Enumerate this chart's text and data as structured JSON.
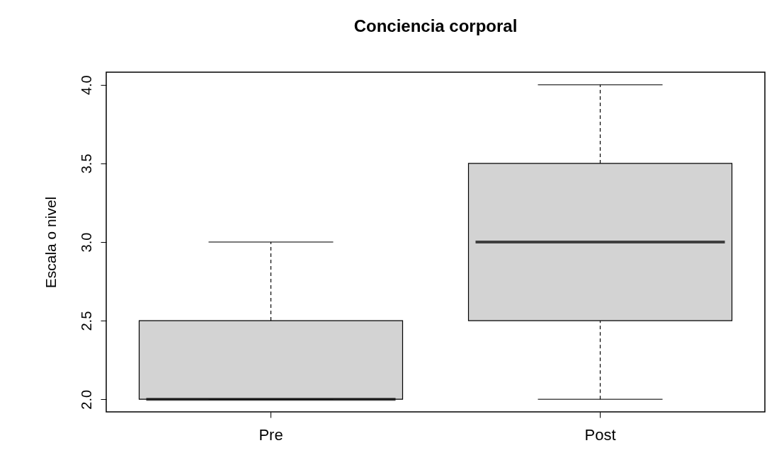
{
  "chart_data": {
    "type": "box",
    "title": "Conciencia corporal",
    "ylabel": "Escala o nivel",
    "categories": [
      "Pre",
      "Post"
    ],
    "boxes": [
      {
        "low": 2,
        "q1": 2,
        "median": 2,
        "q3": 2.5,
        "high": 3
      },
      {
        "low": 2,
        "q1": 2.5,
        "median": 3,
        "q3": 3.5,
        "high": 4
      }
    ],
    "color": "#d3d3d3",
    "ylim": [
      1.92,
      4.08
    ],
    "yticks": [
      {
        "value": 2,
        "label": "2.0"
      },
      {
        "value": 2.5,
        "label": "2.5"
      },
      {
        "value": 3,
        "label": "3.0"
      },
      {
        "value": 3.5,
        "label": "3.5"
      },
      {
        "value": 4,
        "label": "4.0"
      }
    ],
    "grid": false,
    "line_style": "dashed"
  }
}
